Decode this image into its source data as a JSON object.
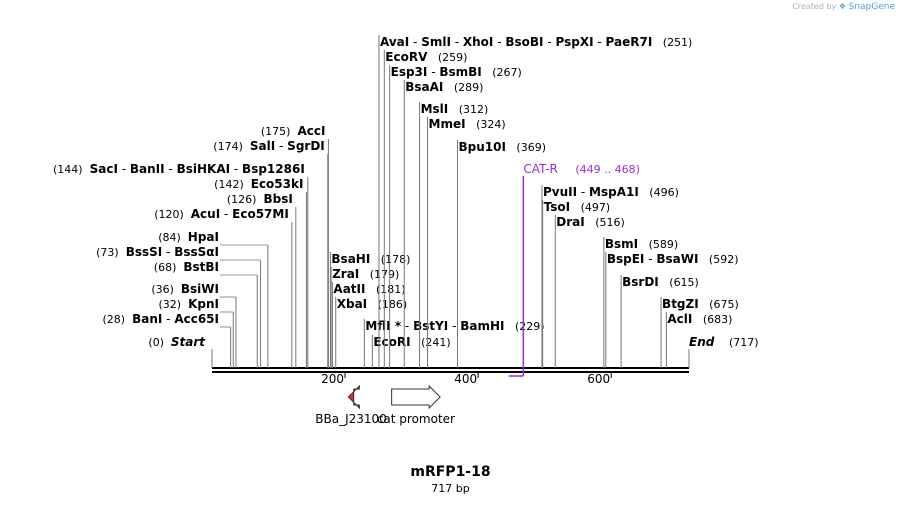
{
  "credit": {
    "prefix": "Created by",
    "brand": "SnapGene"
  },
  "title": "mRFP1-18",
  "size_label": "717 bp",
  "map_length": 717,
  "ends": {
    "start": "Start",
    "start_pos": "(0)",
    "end": "End",
    "end_pos": "(717)"
  },
  "ticks": [
    {
      "pos": 200,
      "label": "200"
    },
    {
      "pos": 400,
      "label": "400"
    },
    {
      "pos": 600,
      "label": "600"
    }
  ],
  "sites": [
    {
      "side": "left",
      "pos": 28,
      "pos_label": "(28)",
      "names": [
        "BanI",
        "Acc65I"
      ]
    },
    {
      "side": "left",
      "pos": 32,
      "pos_label": "(32)",
      "names": [
        "KpnI"
      ]
    },
    {
      "side": "left",
      "pos": 36,
      "pos_label": "(36)",
      "names": [
        "BsiWI"
      ]
    },
    {
      "side": "left",
      "pos": 68,
      "pos_label": "(68)",
      "names": [
        "BstBI"
      ]
    },
    {
      "side": "left",
      "pos": 73,
      "pos_label": "(73)",
      "names": [
        "BssSI",
        "BssSαI"
      ]
    },
    {
      "side": "left",
      "pos": 84,
      "pos_label": "(84)",
      "names": [
        "HpaI"
      ]
    },
    {
      "side": "left",
      "pos": 120,
      "pos_label": "(120)",
      "names": [
        "AcuI",
        "Eco57MI"
      ]
    },
    {
      "side": "left",
      "pos": 126,
      "pos_label": "(126)",
      "names": [
        "BbsI"
      ]
    },
    {
      "side": "left",
      "pos": 142,
      "pos_label": "(142)",
      "names": [
        "Eco53kI"
      ]
    },
    {
      "side": "left",
      "pos": 144,
      "pos_label": "(144)",
      "names": [
        "SacI",
        "BanII",
        "BsiHKAI",
        "Bsp1286I"
      ]
    },
    {
      "side": "left",
      "pos": 174,
      "pos_label": "(174)",
      "names": [
        "SalI",
        "SgrDI"
      ]
    },
    {
      "side": "left",
      "pos": 175,
      "pos_label": "(175)",
      "names": [
        "AccI"
      ]
    },
    {
      "side": "right",
      "pos": 178,
      "pos_label": "(178)",
      "names": [
        "BsaHI"
      ]
    },
    {
      "side": "right",
      "pos": 179,
      "pos_label": "(179)",
      "names": [
        "ZraI"
      ]
    },
    {
      "side": "right",
      "pos": 181,
      "pos_label": "(181)",
      "names": [
        "AatII"
      ]
    },
    {
      "side": "right",
      "pos": 186,
      "pos_label": "(186)",
      "names": [
        "XbaI"
      ]
    },
    {
      "side": "right",
      "pos": 229,
      "pos_label": "(229)",
      "names": [
        "MflI *",
        "BstYI",
        "BamHI"
      ]
    },
    {
      "side": "right",
      "pos": 241,
      "pos_label": "(241)",
      "names": [
        "EcoRI"
      ]
    },
    {
      "side": "right",
      "pos": 251,
      "pos_label": "(251)",
      "names": [
        "AvaI",
        "SmlI",
        "XhoI",
        "BsoBI",
        "PspXI",
        "PaeR7I"
      ]
    },
    {
      "side": "right",
      "pos": 259,
      "pos_label": "(259)",
      "names": [
        "EcoRV"
      ]
    },
    {
      "side": "right",
      "pos": 267,
      "pos_label": "(267)",
      "names": [
        "Esp3I",
        "BsmBI"
      ]
    },
    {
      "side": "right",
      "pos": 289,
      "pos_label": "(289)",
      "names": [
        "BsaAI"
      ]
    },
    {
      "side": "right",
      "pos": 312,
      "pos_label": "(312)",
      "names": [
        "MslI"
      ]
    },
    {
      "side": "right",
      "pos": 324,
      "pos_label": "(324)",
      "names": [
        "MmeI"
      ]
    },
    {
      "side": "right",
      "pos": 369,
      "pos_label": "(369)",
      "names": [
        "Bpu10I"
      ]
    },
    {
      "side": "right",
      "pos": 496,
      "pos_label": "(496)",
      "names": [
        "PvuII",
        "MspA1I"
      ]
    },
    {
      "side": "right",
      "pos": 497,
      "pos_label": "(497)",
      "names": [
        "TsoI"
      ]
    },
    {
      "side": "right",
      "pos": 516,
      "pos_label": "(516)",
      "names": [
        "DraI"
      ]
    },
    {
      "side": "right",
      "pos": 589,
      "pos_label": "(589)",
      "names": [
        "BsmI"
      ]
    },
    {
      "side": "right",
      "pos": 592,
      "pos_label": "(592)",
      "names": [
        "BspEI",
        "BsaWI"
      ]
    },
    {
      "side": "right",
      "pos": 615,
      "pos_label": "(615)",
      "names": [
        "BsrDI"
      ]
    },
    {
      "side": "right",
      "pos": 675,
      "pos_label": "(675)",
      "names": [
        "BtgZI"
      ]
    },
    {
      "side": "right",
      "pos": 683,
      "pos_label": "(683)",
      "names": [
        "AclI"
      ]
    }
  ],
  "primer": {
    "name": "CAT-R",
    "range": "(449 .. 468)",
    "start": 449,
    "end": 468,
    "color": "#9b2fd1"
  },
  "features": [
    {
      "name": "BBa_J23100",
      "start": 193,
      "end": 228,
      "direction": "reverse",
      "color": "#ee2b24"
    },
    {
      "name": "cat promoter",
      "start": 258,
      "end": 358,
      "direction": "forward",
      "color": "#ffffff"
    }
  ]
}
